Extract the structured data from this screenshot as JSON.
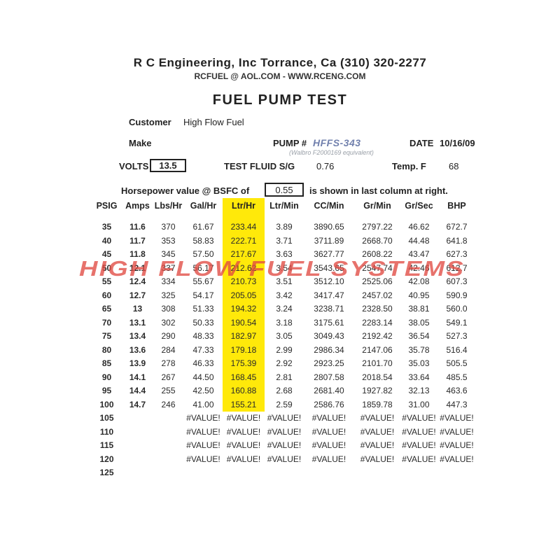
{
  "header": {
    "company": "R C Engineering, Inc  Torrance,  Ca  (310) 320-2277",
    "contact": "RCFUEL @ AOL.COM - WWW.RCENG.COM",
    "title": "FUEL PUMP TEST"
  },
  "form": {
    "customer_label": "Customer",
    "customer_value": "High Flow Fuel",
    "make_label": "Make",
    "pump_label": "PUMP #",
    "pump_value": "HFFS-343",
    "pump_note": "(Walbro F2000169 equivalent)",
    "date_label": "DATE",
    "date_value": "10/16/09",
    "volts_label": "VOLTS",
    "volts_value": "13.5",
    "test_fluid_label": "TEST FLUID  S/G",
    "test_fluid_value": "0.76",
    "temp_label": "Temp. F",
    "temp_value": "68",
    "bsfc_prefix": "Horsepower value @  BSFC of",
    "bsfc_value": "0.55",
    "bsfc_suffix": "is shown in last column at right."
  },
  "table": {
    "keys": [
      "psig",
      "amps",
      "lbs-hr",
      "gal-hr",
      "ltr-hr",
      "ltr-min",
      "cc-min",
      "gr-min",
      "gr-sec",
      "bhp"
    ],
    "headers": [
      "PSIG",
      "Amps",
      "Lbs/Hr",
      "Gal/Hr",
      "Ltr/Hr",
      "Ltr/Min",
      "CC/Min",
      "Gr/Min",
      "Gr/Sec",
      "BHP"
    ],
    "highlight_column_index": 4,
    "rows": [
      {
        "highlight": true,
        "cells": [
          "35",
          "11.6",
          "370",
          "61.67",
          "233.44",
          "3.89",
          "3890.65",
          "2797.22",
          "46.62",
          "672.7"
        ]
      },
      {
        "highlight": true,
        "cells": [
          "40",
          "11.7",
          "353",
          "58.83",
          "222.71",
          "3.71",
          "3711.89",
          "2668.70",
          "44.48",
          "641.8"
        ]
      },
      {
        "highlight": true,
        "cells": [
          "45",
          "11.8",
          "345",
          "57.50",
          "217.67",
          "3.63",
          "3627.77",
          "2608.22",
          "43.47",
          "627.3"
        ]
      },
      {
        "highlight": true,
        "cells": [
          "50",
          "12.1",
          "337",
          "56.17",
          "212.62",
          "3.54",
          "3543.65",
          "2547.74",
          "42.46",
          "612.7"
        ]
      },
      {
        "highlight": true,
        "cells": [
          "55",
          "12.4",
          "334",
          "55.67",
          "210.73",
          "3.51",
          "3512.10",
          "2525.06",
          "42.08",
          "607.3"
        ]
      },
      {
        "highlight": true,
        "cells": [
          "60",
          "12.7",
          "325",
          "54.17",
          "205.05",
          "3.42",
          "3417.47",
          "2457.02",
          "40.95",
          "590.9"
        ]
      },
      {
        "highlight": true,
        "cells": [
          "65",
          "13",
          "308",
          "51.33",
          "194.32",
          "3.24",
          "3238.71",
          "2328.50",
          "38.81",
          "560.0"
        ]
      },
      {
        "highlight": true,
        "cells": [
          "70",
          "13.1",
          "302",
          "50.33",
          "190.54",
          "3.18",
          "3175.61",
          "2283.14",
          "38.05",
          "549.1"
        ]
      },
      {
        "highlight": true,
        "cells": [
          "75",
          "13.4",
          "290",
          "48.33",
          "182.97",
          "3.05",
          "3049.43",
          "2192.42",
          "36.54",
          "527.3"
        ]
      },
      {
        "highlight": true,
        "cells": [
          "80",
          "13.6",
          "284",
          "47.33",
          "179.18",
          "2.99",
          "2986.34",
          "2147.06",
          "35.78",
          "516.4"
        ]
      },
      {
        "highlight": true,
        "cells": [
          "85",
          "13.9",
          "278",
          "46.33",
          "175.39",
          "2.92",
          "2923.25",
          "2101.70",
          "35.03",
          "505.5"
        ]
      },
      {
        "highlight": true,
        "cells": [
          "90",
          "14.1",
          "267",
          "44.50",
          "168.45",
          "2.81",
          "2807.58",
          "2018.54",
          "33.64",
          "485.5"
        ]
      },
      {
        "highlight": true,
        "cells": [
          "95",
          "14.4",
          "255",
          "42.50",
          "160.88",
          "2.68",
          "2681.40",
          "1927.82",
          "32.13",
          "463.6"
        ]
      },
      {
        "highlight": true,
        "cells": [
          "100",
          "14.7",
          "246",
          "41.00",
          "155.21",
          "2.59",
          "2586.76",
          "1859.78",
          "31.00",
          "447.3"
        ]
      },
      {
        "highlight": false,
        "cells": [
          "105",
          "",
          "",
          "#VALUE!",
          "#VALUE!",
          "#VALUE!",
          "#VALUE!",
          "#VALUE!",
          "#VALUE!",
          "#VALUE!"
        ]
      },
      {
        "highlight": false,
        "cells": [
          "110",
          "",
          "",
          "#VALUE!",
          "#VALUE!",
          "#VALUE!",
          "#VALUE!",
          "#VALUE!",
          "#VALUE!",
          "#VALUE!"
        ]
      },
      {
        "highlight": false,
        "cells": [
          "115",
          "",
          "",
          "#VALUE!",
          "#VALUE!",
          "#VALUE!",
          "#VALUE!",
          "#VALUE!",
          "#VALUE!",
          "#VALUE!"
        ]
      },
      {
        "highlight": false,
        "cells": [
          "120",
          "",
          "",
          "#VALUE!",
          "#VALUE!",
          "#VALUE!",
          "#VALUE!",
          "#VALUE!",
          "#VALUE!",
          "#VALUE!"
        ]
      },
      {
        "highlight": false,
        "cells": [
          "125",
          "",
          "",
          "",
          "",
          "",
          "",
          "",
          "",
          ""
        ]
      }
    ]
  },
  "watermark": {
    "text": "HIGH FLOW FUEL SYSTEMS"
  },
  "colors": {
    "highlight_yellow": "#FFE90A",
    "watermark_red": "#E04A42",
    "pump_number_blue": "#7180AD"
  }
}
